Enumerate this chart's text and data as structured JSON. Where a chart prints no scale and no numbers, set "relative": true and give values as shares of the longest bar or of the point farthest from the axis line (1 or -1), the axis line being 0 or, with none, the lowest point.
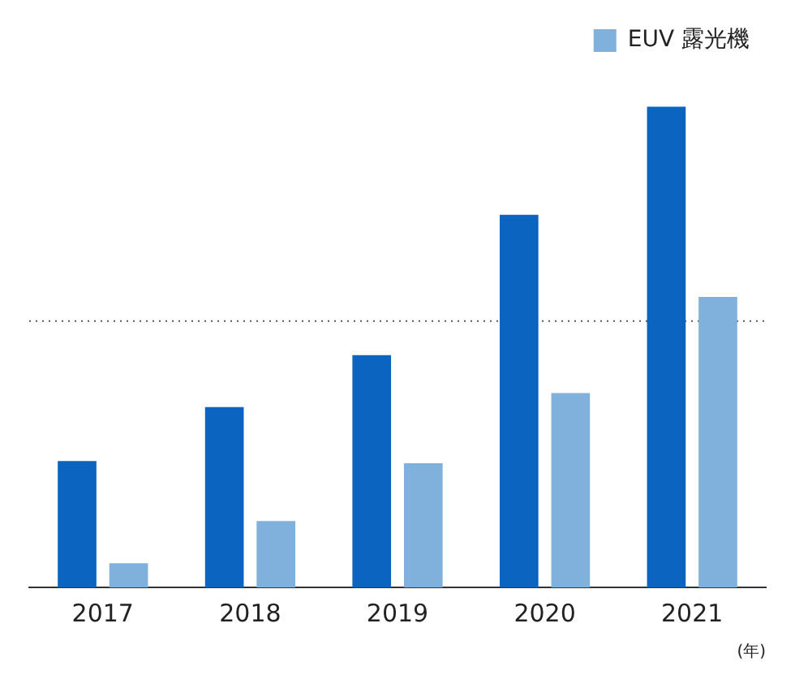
{
  "chart_data": {
    "type": "bar",
    "relative": true,
    "categories": [
      "2017",
      "2018",
      "2019",
      "2020",
      "2021"
    ],
    "xlabel": "(年)",
    "legend": "top right",
    "grid": false,
    "series": [
      {
        "color": "#0a64c0",
        "values": [
          0.263,
          0.375,
          0.483,
          0.775,
          1
        ]
      },
      {
        "name": "EUV 露光機",
        "color": "#80b0dc",
        "values": [
          0.05,
          0.138,
          0.258,
          0.404,
          0.604
        ]
      }
    ],
    "ref_lines": [
      {
        "axis": "y",
        "value": 0.554,
        "color": "#555555",
        "line_style": "dotted"
      }
    ]
  }
}
